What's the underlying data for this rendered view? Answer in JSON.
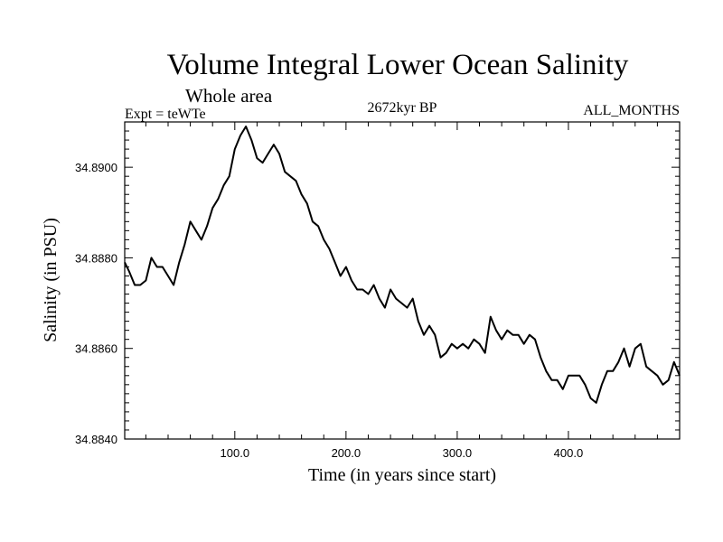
{
  "chart_data": {
    "type": "line",
    "title": "Volume Integral Lower Ocean Salinity",
    "subtitle": "Whole area",
    "experiment": "Expt = teWTe",
    "period": "2672kyr BP",
    "months": "ALL_MONTHS",
    "xlabel": "Time (in years since start)",
    "ylabel": "Salinity (in PSU)",
    "xlim": [
      1,
      500
    ],
    "ylim": [
      34.884,
      34.891
    ],
    "x_ticks": [
      100,
      200,
      300,
      400
    ],
    "x_tick_labels": [
      "100.0",
      "200.0",
      "300.0",
      "400.0"
    ],
    "y_ticks": [
      34.884,
      34.886,
      34.888,
      34.89
    ],
    "y_tick_labels": [
      "34.8840",
      "34.8860",
      "34.8880",
      "34.8900"
    ],
    "series": [
      {
        "name": "Volume Integral Lower Ocean Salinity",
        "x": [
          1,
          5,
          10,
          15,
          20,
          25,
          30,
          35,
          40,
          45,
          50,
          55,
          60,
          65,
          70,
          75,
          80,
          85,
          90,
          95,
          100,
          105,
          110,
          115,
          120,
          125,
          130,
          135,
          140,
          145,
          150,
          155,
          160,
          165,
          170,
          175,
          180,
          185,
          190,
          195,
          200,
          205,
          210,
          215,
          220,
          225,
          230,
          235,
          240,
          245,
          250,
          255,
          260,
          265,
          270,
          275,
          280,
          285,
          290,
          295,
          300,
          305,
          310,
          315,
          320,
          325,
          330,
          335,
          340,
          345,
          350,
          355,
          360,
          365,
          370,
          375,
          380,
          385,
          390,
          395,
          400,
          405,
          410,
          415,
          420,
          425,
          430,
          435,
          440,
          445,
          450,
          455,
          460,
          465,
          470,
          475,
          480,
          485,
          490,
          495,
          500
        ],
        "values": [
          34.8879,
          34.8877,
          34.8874,
          34.8874,
          34.8875,
          34.888,
          34.8878,
          34.8878,
          34.8876,
          34.8874,
          34.8879,
          34.8883,
          34.8888,
          34.8886,
          34.8884,
          34.8887,
          34.8891,
          34.8893,
          34.8896,
          34.8898,
          34.8904,
          34.8907,
          34.8909,
          34.8906,
          34.8902,
          34.8901,
          34.8903,
          34.8905,
          34.8903,
          34.8899,
          34.8898,
          34.8897,
          34.8894,
          34.8892,
          34.8888,
          34.8887,
          34.8884,
          34.8882,
          34.8879,
          34.8876,
          34.8878,
          34.8875,
          34.8873,
          34.8873,
          34.8872,
          34.8874,
          34.8871,
          34.8869,
          34.8873,
          34.8871,
          34.887,
          34.8869,
          34.8871,
          34.8866,
          34.8863,
          34.8865,
          34.8863,
          34.8858,
          34.8859,
          34.8861,
          34.886,
          34.8861,
          34.886,
          34.8862,
          34.8861,
          34.8859,
          34.8867,
          34.8864,
          34.8862,
          34.8864,
          34.8863,
          34.8863,
          34.8861,
          34.8863,
          34.8862,
          34.8858,
          34.8855,
          34.8853,
          34.8853,
          34.8851,
          34.8854,
          34.8854,
          34.8854,
          34.8852,
          34.8849,
          34.8848,
          34.8852,
          34.8855,
          34.8855,
          34.8857,
          34.886,
          34.8856,
          34.886,
          34.8861,
          34.8856,
          34.8855,
          34.8854,
          34.8852,
          34.8853,
          34.8857,
          34.8854
        ]
      }
    ]
  }
}
